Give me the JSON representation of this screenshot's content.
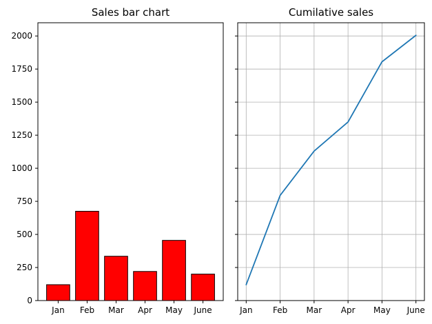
{
  "chart_data": [
    {
      "type": "bar",
      "title": "Sales bar chart",
      "categories": [
        "Jan",
        "Feb",
        "Mar",
        "Apr",
        "May",
        "June"
      ],
      "values": [
        120,
        675,
        335,
        220,
        455,
        200
      ],
      "ylim": [
        0,
        2100
      ],
      "yticks": [
        "0",
        "250",
        "500",
        "750",
        "1000",
        "1250",
        "1500",
        "1750",
        "2000"
      ],
      "grid": false,
      "bar_color": "#ff0000",
      "edge_color": "#000000"
    },
    {
      "type": "line",
      "title": "Cumilative sales",
      "categories": [
        "Jan",
        "Feb",
        "Mar",
        "Apr",
        "May",
        "June"
      ],
      "values": [
        120,
        795,
        1130,
        1350,
        1805,
        2005
      ],
      "ylim": [
        0,
        2100
      ],
      "grid": true,
      "line_color": "#1f77b4"
    }
  ]
}
